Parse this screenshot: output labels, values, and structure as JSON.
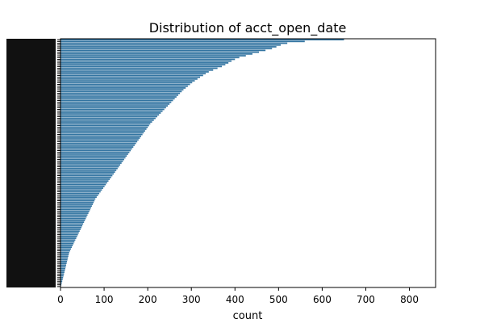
{
  "chart_data": {
    "type": "bar",
    "orientation": "horizontal",
    "title": "Distribution of acct_open_date",
    "xlabel": "count",
    "ylabel": "",
    "xlim": [
      0,
      860
    ],
    "xticks": [
      0,
      100,
      200,
      300,
      400,
      500,
      600,
      700,
      800
    ],
    "grid": false,
    "legend": "none",
    "bar_color": "#3274a1",
    "values": [
      650,
      560,
      520,
      505,
      495,
      485,
      470,
      455,
      440,
      425,
      410,
      400,
      392,
      385,
      378,
      370,
      360,
      350,
      340,
      333,
      327,
      320,
      314,
      308,
      302,
      297,
      292,
      287,
      282,
      278,
      274,
      270,
      266,
      262,
      258,
      254,
      250,
      246,
      242,
      238,
      234,
      230,
      226,
      222,
      218,
      214,
      210,
      206,
      203,
      200,
      197,
      194,
      191,
      188,
      185,
      182,
      179,
      176,
      173,
      170,
      167,
      164,
      161,
      158,
      155,
      152,
      149,
      146,
      143,
      140,
      137,
      134,
      131,
      128,
      125,
      122,
      119,
      116,
      113,
      110,
      107,
      104,
      101,
      98,
      95,
      92,
      89,
      86,
      83,
      80,
      78,
      76,
      74,
      72,
      70,
      68,
      66,
      64,
      62,
      60,
      58,
      56,
      54,
      52,
      50,
      48,
      46,
      44,
      42,
      40,
      38,
      36,
      34,
      32,
      30,
      28,
      26,
      24,
      22,
      20,
      19,
      18,
      17,
      16,
      15,
      14,
      13,
      12,
      11,
      10,
      9,
      8,
      7,
      6,
      5,
      4,
      3,
      2,
      1
    ]
  }
}
